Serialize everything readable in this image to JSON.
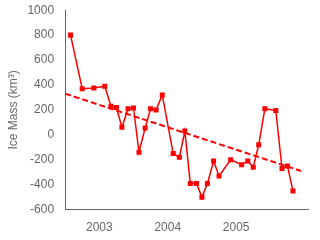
{
  "chart_data": {
    "type": "line",
    "ylabel": "Ice Mass (km³)",
    "x": [
      2002.58,
      2002.75,
      2002.92,
      2003.08,
      2003.17,
      2003.25,
      2003.33,
      2003.42,
      2003.5,
      2003.58,
      2003.67,
      2003.75,
      2003.83,
      2003.92,
      2004.08,
      2004.17,
      2004.25,
      2004.33,
      2004.42,
      2004.5,
      2004.58,
      2004.67,
      2004.75,
      2004.92,
      2005.08,
      2005.17,
      2005.25,
      2005.33,
      2005.42,
      2005.58,
      2005.67,
      2005.75,
      2005.83
    ],
    "series": [
      {
        "color": "#ff0000",
        "marker": "square",
        "line_style": "solid",
        "values": [
          800,
          370,
          375,
          390,
          230,
          220,
          60,
          210,
          215,
          -140,
          55,
          210,
          200,
          320,
          -150,
          -180,
          30,
          -390,
          -390,
          -500,
          -390,
          -210,
          -330,
          -200,
          -240,
          -210,
          -260,
          -80,
          210,
          195,
          -270,
          -250,
          -450
        ]
      },
      {
        "color": "#ff0000",
        "marker": "none",
        "line_style": "dashed",
        "x": [
          2002.5,
          2005.95
        ],
        "values": [
          330,
          -290
        ]
      }
    ],
    "xlim": [
      2002.5,
      2006.05
    ],
    "xticks": [
      2003,
      2004,
      2005
    ],
    "ylim": [
      -600,
      1000
    ],
    "yticks": [
      -600,
      -400,
      -200,
      0,
      200,
      400,
      600,
      800,
      1000
    ],
    "grid": false
  }
}
